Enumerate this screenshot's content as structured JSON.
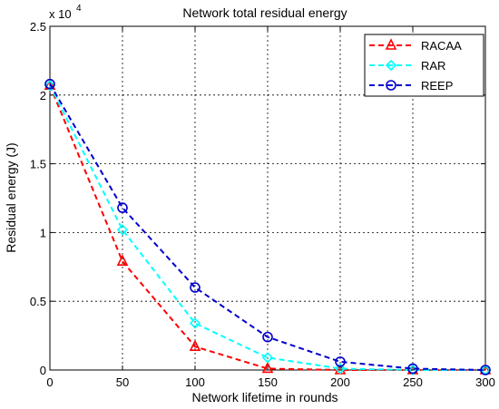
{
  "chart_data": {
    "type": "line",
    "title": "Network total residual energy",
    "xlabel": "Network lifetime in rounds",
    "ylabel": "Residual energy (J)",
    "y_exponent_label": {
      "base": "x 10",
      "exp": "4"
    },
    "x": [
      0,
      50,
      100,
      150,
      200,
      250,
      300
    ],
    "xlim": [
      0,
      300
    ],
    "ylim": [
      0,
      2.5
    ],
    "x_ticks": [
      0,
      50,
      100,
      150,
      200,
      250,
      300
    ],
    "x_tick_labels": [
      "0",
      "50",
      "100",
      "150",
      "200",
      "250",
      "300"
    ],
    "y_ticks": [
      0,
      0.5,
      1,
      1.5,
      2,
      2.5
    ],
    "y_tick_labels": [
      "0",
      "0.5",
      "1",
      "1.5",
      "2",
      "2.5"
    ],
    "grid": true,
    "legend_position": "top-right",
    "series": [
      {
        "name": "RACAA",
        "color": "#ff0000",
        "marker": "triangle",
        "values": [
          2.07,
          0.79,
          0.17,
          0.01,
          0.0,
          0.0,
          0.0
        ]
      },
      {
        "name": "RAR",
        "color": "#00ffff",
        "marker": "diamond",
        "values": [
          2.07,
          1.02,
          0.34,
          0.09,
          0.01,
          0.0,
          0.0
        ]
      },
      {
        "name": "REEP",
        "color": "#0000cc",
        "marker": "circle",
        "values": [
          2.08,
          1.18,
          0.6,
          0.24,
          0.06,
          0.01,
          0.0
        ]
      }
    ]
  }
}
